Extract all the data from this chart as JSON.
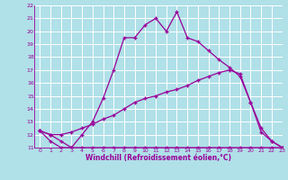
{
  "line1_x": [
    0,
    1,
    2,
    3,
    4,
    5,
    6,
    7,
    8,
    9,
    10,
    11,
    12,
    13,
    14,
    15,
    16,
    17,
    18,
    19,
    20,
    21,
    22,
    23
  ],
  "line1_y": [
    12.3,
    12.0,
    11.5,
    11.0,
    12.0,
    13.0,
    14.8,
    17.0,
    19.5,
    19.5,
    20.5,
    21.0,
    20.0,
    21.5,
    19.5,
    19.2,
    18.5,
    17.8,
    17.2,
    16.5,
    14.5,
    12.5,
    11.5,
    11.0
  ],
  "line2_x": [
    0,
    1,
    2,
    3,
    4,
    5,
    6,
    7,
    8,
    9,
    10,
    11,
    12,
    13,
    14,
    15,
    16,
    17,
    18,
    19,
    20,
    21,
    22,
    23
  ],
  "line2_y": [
    12.3,
    12.0,
    12.0,
    12.2,
    12.5,
    12.8,
    13.2,
    13.5,
    14.0,
    14.5,
    14.8,
    15.0,
    15.3,
    15.5,
    15.8,
    16.2,
    16.5,
    16.8,
    17.0,
    16.7,
    14.5,
    12.2,
    11.5,
    11.0
  ],
  "line3_x": [
    0,
    1,
    2,
    3,
    4,
    5,
    6,
    7,
    8,
    9,
    10,
    11,
    12,
    13,
    14,
    15,
    16,
    17,
    18,
    19,
    20,
    21,
    22,
    23
  ],
  "line3_y": [
    12.3,
    11.5,
    11.0,
    11.0,
    11.0,
    11.0,
    11.0,
    11.0,
    11.0,
    11.0,
    11.0,
    11.0,
    11.0,
    11.0,
    11.0,
    11.0,
    11.0,
    11.0,
    11.0,
    11.0,
    11.0,
    11.0,
    11.0,
    11.0
  ],
  "line_color": "#990099",
  "bg_color": "#b0e0e8",
  "grid_color": "#ffffff",
  "xlabel": "Windchill (Refroidissement éolien,°C)",
  "xlim": [
    -0.5,
    23
  ],
  "ylim": [
    11,
    22
  ],
  "yticks": [
    11,
    12,
    13,
    14,
    15,
    16,
    17,
    18,
    19,
    20,
    21,
    22
  ],
  "xticks": [
    0,
    1,
    2,
    3,
    4,
    5,
    6,
    7,
    8,
    9,
    10,
    11,
    12,
    13,
    14,
    15,
    16,
    17,
    18,
    19,
    20,
    21,
    22,
    23
  ],
  "marker": "+",
  "markersize": 3.5,
  "linewidth": 0.9
}
